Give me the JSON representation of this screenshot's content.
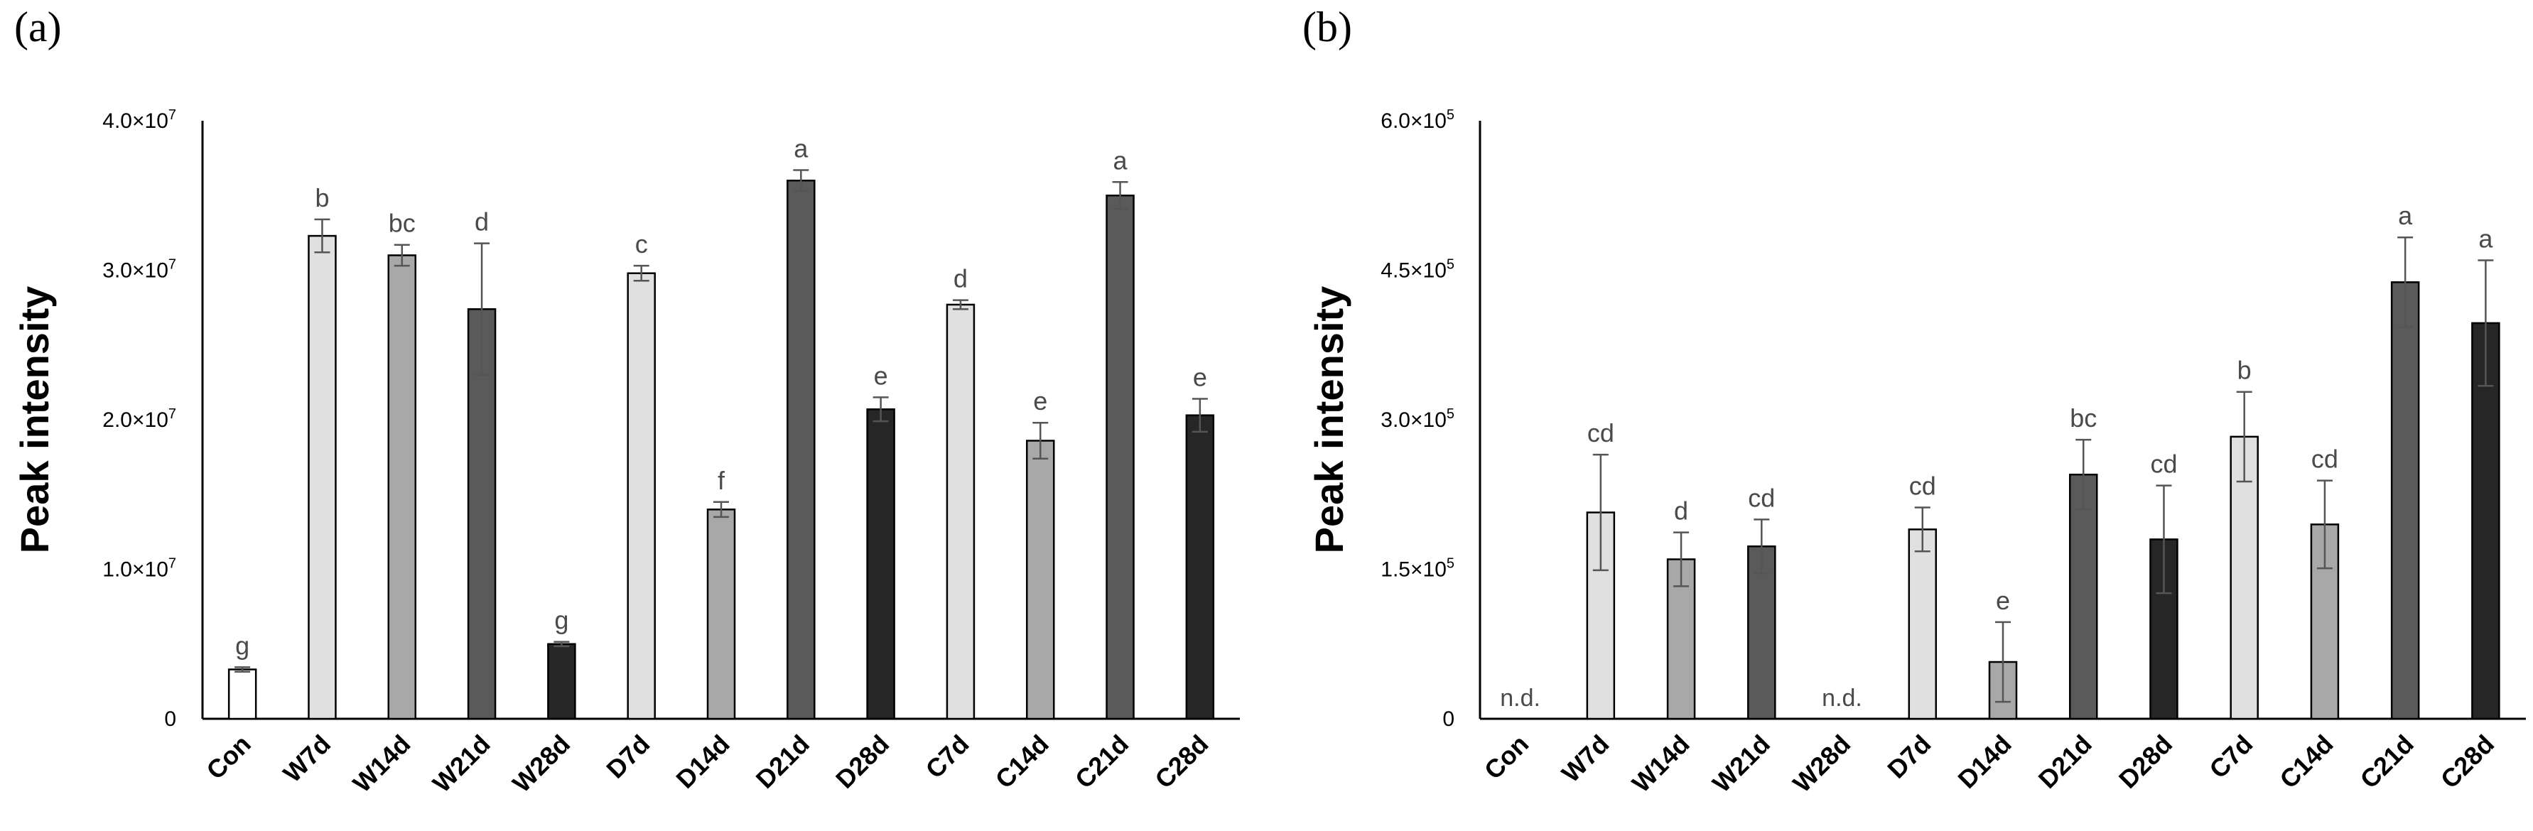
{
  "colors": {
    "Con": "#ffffff",
    "7d": "#e0e0e0",
    "14d": "#a8a8a8",
    "21d": "#5a5a5a",
    "28d": "#262626"
  },
  "chart_data": [
    {
      "type": "bar",
      "panel_label": "(a)",
      "ylabel": "Peak intensity",
      "ylim": [
        0,
        40000000
      ],
      "yticks": [
        {
          "value": 0,
          "base": "0",
          "exp": ""
        },
        {
          "value": 10000000,
          "base": "1.0×10",
          "exp": "7"
        },
        {
          "value": 20000000,
          "base": "2.0×10",
          "exp": "7"
        },
        {
          "value": 30000000,
          "base": "3.0×10",
          "exp": "7"
        },
        {
          "value": 40000000,
          "base": "4.0×10",
          "exp": "7"
        }
      ],
      "categories": [
        "Con",
        "W7d",
        "W14d",
        "W21d",
        "W28d",
        "D7d",
        "D14d",
        "D21d",
        "D28d",
        "C7d",
        "C14d",
        "C21d",
        "C28d"
      ],
      "color_keys": [
        "Con",
        "7d",
        "14d",
        "21d",
        "28d",
        "7d",
        "14d",
        "21d",
        "28d",
        "7d",
        "14d",
        "21d",
        "28d"
      ],
      "values": [
        3300000,
        32300000,
        31000000,
        27400000,
        5000000,
        29800000,
        14000000,
        36000000,
        20700000,
        27700000,
        18600000,
        35000000,
        20300000
      ],
      "errors": [
        150000,
        1100000,
        700000,
        4400000,
        150000,
        500000,
        500000,
        700000,
        800000,
        300000,
        1200000,
        900000,
        1100000
      ],
      "letters": [
        "g",
        "b",
        "bc",
        "d",
        "g",
        "c",
        "f",
        "a",
        "e",
        "d",
        "e",
        "a",
        "e"
      ],
      "nd": [
        false,
        false,
        false,
        false,
        false,
        false,
        false,
        false,
        false,
        false,
        false,
        false,
        false
      ],
      "nd_label": "n.d."
    },
    {
      "type": "bar",
      "panel_label": "(b)",
      "ylabel": "Peak intensity",
      "ylim": [
        0,
        600000
      ],
      "yticks": [
        {
          "value": 0,
          "base": "0",
          "exp": ""
        },
        {
          "value": 150000,
          "base": "1.5×10",
          "exp": "5"
        },
        {
          "value": 300000,
          "base": "3.0×10",
          "exp": "5"
        },
        {
          "value": 450000,
          "base": "4.5×10",
          "exp": "5"
        },
        {
          "value": 600000,
          "base": "6.0×10",
          "exp": "5"
        }
      ],
      "categories": [
        "Con",
        "W7d",
        "W14d",
        "W21d",
        "W28d",
        "D7d",
        "D14d",
        "D21d",
        "D28d",
        "C7d",
        "C14d",
        "C21d",
        "C28d"
      ],
      "color_keys": [
        "Con",
        "7d",
        "14d",
        "21d",
        "28d",
        "7d",
        "14d",
        "21d",
        "28d",
        "7d",
        "14d",
        "21d",
        "28d"
      ],
      "values": [
        0,
        207000,
        160000,
        173000,
        0,
        190000,
        57000,
        245000,
        180000,
        283000,
        195000,
        438000,
        397000
      ],
      "errors": [
        0,
        58000,
        27000,
        27000,
        0,
        22000,
        40000,
        35000,
        54000,
        45000,
        44000,
        45000,
        63000
      ],
      "letters": [
        "",
        "cd",
        "d",
        "cd",
        "",
        "cd",
        "e",
        "bc",
        "cd",
        "b",
        "cd",
        "a",
        "a"
      ],
      "nd": [
        true,
        false,
        false,
        false,
        true,
        false,
        false,
        false,
        false,
        false,
        false,
        false,
        false
      ],
      "nd_label": "n.d."
    }
  ]
}
